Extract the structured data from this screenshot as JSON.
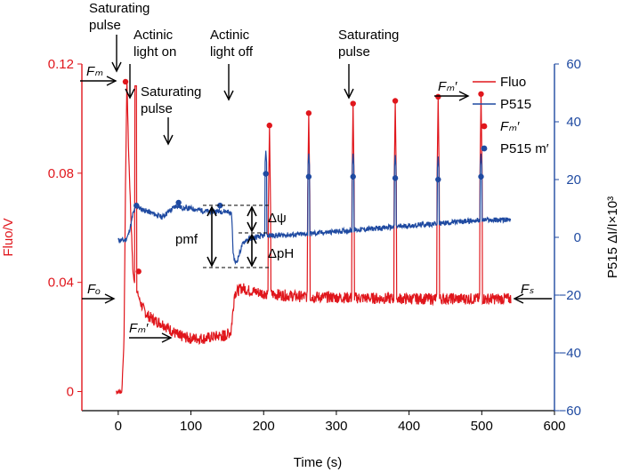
{
  "chart_data": {
    "type": "line",
    "xlabel": "Time (s)",
    "ylabel_left": "Fluo/V",
    "ylabel_right": "P515 ΔI/I×10³",
    "xlim": [
      -50,
      600
    ],
    "ylim_left": [
      -0.007,
      0.12
    ],
    "ylim_right": [
      -60,
      60
    ],
    "x_ticks": [
      0,
      100,
      200,
      300,
      400,
      500,
      600
    ],
    "y_left_ticks": [
      0,
      0.04,
      0.08,
      0.12
    ],
    "y_left_tick_labels": [
      "0",
      "0.04",
      "0.08",
      "0.12"
    ],
    "y_right_ticks": [
      -60,
      -40,
      -20,
      0,
      20,
      40,
      60
    ],
    "grid": false,
    "legend_position": "top-right",
    "colors": {
      "fluo": "#e0161c",
      "p515": "#1f4aa1",
      "axis_left": "#e0161c",
      "axis_right": "#1f4aa1"
    },
    "series": [
      {
        "name": "Fluo",
        "axis": "left",
        "x": [
          0,
          5,
          8,
          10,
          12,
          14,
          18,
          20,
          22,
          25,
          28,
          30,
          35,
          40,
          50,
          60,
          70,
          80,
          90,
          100,
          110,
          120,
          130,
          140,
          150,
          155,
          158,
          160,
          170,
          180,
          190,
          200,
          220,
          250,
          300,
          350,
          400,
          450,
          500,
          540
        ],
        "y": [
          0.0,
          0.0,
          0.02,
          0.075,
          0.114,
          0.09,
          0.06,
          0.045,
          0.04,
          0.037,
          0.035,
          0.033,
          0.03,
          0.028,
          0.026,
          0.025,
          0.023,
          0.021,
          0.02,
          0.0195,
          0.0195,
          0.0195,
          0.02,
          0.0205,
          0.021,
          0.022,
          0.03,
          0.036,
          0.038,
          0.037,
          0.0365,
          0.036,
          0.0355,
          0.0348,
          0.0345,
          0.0342,
          0.034,
          0.034,
          0.034,
          0.034
        ]
      },
      {
        "name": "P515",
        "axis": "right",
        "x": [
          0,
          10,
          14,
          18,
          20,
          22,
          25,
          30,
          40,
          50,
          60,
          70,
          80,
          90,
          100,
          120,
          140,
          150,
          156,
          158,
          160,
          162,
          165,
          170,
          175,
          180,
          190,
          200,
          250,
          300,
          350,
          400,
          450,
          500,
          540
        ],
        "y": [
          -1,
          -1,
          1,
          5,
          8,
          9,
          11,
          10,
          9,
          8,
          7,
          9,
          11,
          10,
          10,
          9,
          9,
          9,
          8,
          -5,
          -8,
          -9,
          -7,
          -3,
          -1,
          -0.5,
          0,
          0.5,
          1,
          2,
          3,
          4,
          5,
          6,
          6
        ]
      }
    ],
    "fm_prime_fluo": [
      {
        "x": 10,
        "y": 0.1135
      },
      {
        "x": 28,
        "y": 0.044
      },
      {
        "x": 208,
        "y": 0.0975
      },
      {
        "x": 262,
        "y": 0.102
      },
      {
        "x": 323,
        "y": 0.1055
      },
      {
        "x": 381,
        "y": 0.1065
      },
      {
        "x": 440,
        "y": 0.108
      },
      {
        "x": 499,
        "y": 0.109
      },
      {
        "x": 85,
        "y": 0.0205
      },
      {
        "x": 145,
        "y": 0.0195
      }
    ],
    "p515_m_prime": [
      {
        "x": 25,
        "y": 11
      },
      {
        "x": 83,
        "y": 12
      },
      {
        "x": 140,
        "y": 11
      },
      {
        "x": 203,
        "y": 22
      },
      {
        "x": 262,
        "y": 21
      },
      {
        "x": 323,
        "y": 21
      },
      {
        "x": 381,
        "y": 20.5
      },
      {
        "x": 440,
        "y": 20
      },
      {
        "x": 499,
        "y": 21
      }
    ],
    "legend": [
      {
        "label": "Fluo",
        "kind": "line",
        "color": "#e0161c"
      },
      {
        "label": "P515",
        "kind": "line",
        "color": "#1f4aa1"
      },
      {
        "label": "Fₘ′",
        "kind": "dot",
        "color": "#e0161c"
      },
      {
        "label": "P515 m′",
        "kind": "dot",
        "color": "#1f4aa1"
      }
    ],
    "annotations": {
      "saturating_pulse_1": [
        "Saturating",
        "pulse"
      ],
      "actinic_on": [
        "Actinic",
        "light on"
      ],
      "actinic_off": [
        "Actinic",
        "light off"
      ],
      "saturating_pulse_2": [
        "Saturating",
        "pulse"
      ],
      "saturating_pulse_3": [
        "Saturating",
        "pulse"
      ],
      "fm": "Fₘ",
      "fo": "Fₒ",
      "fm_prime_bottom": "Fₘ′",
      "fm_prime_top": "Fₘ′",
      "fs": "Fₛ",
      "pmf": "pmf",
      "dpsi": "Δψ",
      "dph": "ΔpH"
    }
  }
}
